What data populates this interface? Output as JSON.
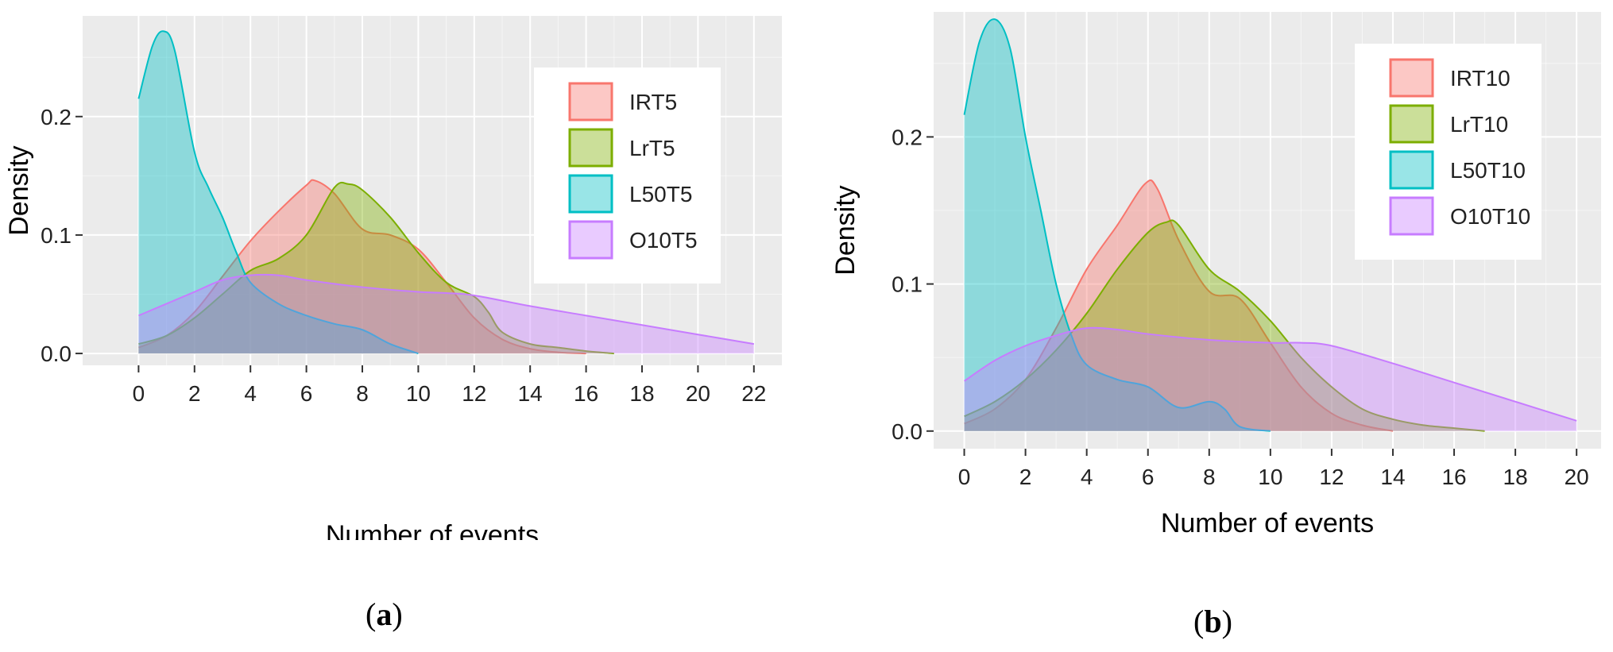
{
  "colors": {
    "IRT": "#F8766D",
    "LrT": "#7CAE00",
    "L50T": "#00BFC4",
    "O10T": "#C77CFF",
    "panel_bg": "#EBEBEB",
    "grid": "#FFFFFF"
  },
  "panel_labels": {
    "a": "a",
    "b": "b"
  },
  "chart_data": [
    {
      "type": "area",
      "panel": "a",
      "title": "",
      "xlabel": "Number of events",
      "ylabel": "Density",
      "xlim": [
        -2.0,
        23.0
      ],
      "ylim": [
        -0.01,
        0.285
      ],
      "xticks": [
        0,
        2,
        4,
        6,
        8,
        10,
        12,
        14,
        16,
        18,
        20,
        22
      ],
      "yticks": [
        0.0,
        0.1,
        0.2
      ],
      "ytick_labels": [
        "0.0",
        "0.1",
        "0.2"
      ],
      "legend_position": "top-right",
      "series": [
        {
          "name": "IRT5",
          "key": "IRT",
          "x": [
            0,
            1,
            2,
            3,
            4,
            5,
            6,
            6.3,
            7,
            8,
            9,
            10,
            11,
            12,
            13,
            14,
            15,
            16
          ],
          "y": [
            0.005,
            0.015,
            0.035,
            0.065,
            0.095,
            0.12,
            0.142,
            0.146,
            0.135,
            0.105,
            0.1,
            0.088,
            0.06,
            0.03,
            0.012,
            0.004,
            0.001,
            0
          ]
        },
        {
          "name": "LrT5",
          "key": "LrT",
          "x": [
            0,
            1,
            2,
            3,
            4,
            5,
            6,
            7,
            7.5,
            8,
            9,
            10,
            11,
            12,
            12.5,
            13,
            14,
            15,
            16,
            17
          ],
          "y": [
            0.008,
            0.015,
            0.03,
            0.05,
            0.07,
            0.08,
            0.1,
            0.14,
            0.143,
            0.138,
            0.115,
            0.085,
            0.06,
            0.048,
            0.035,
            0.018,
            0.008,
            0.005,
            0.002,
            0
          ]
        },
        {
          "name": "L50T5",
          "key": "L50T",
          "x": [
            0,
            0.5,
            0.9,
            1.3,
            2,
            2.5,
            3,
            3.5,
            4,
            5,
            6,
            7,
            8,
            9,
            10
          ],
          "y": [
            0.215,
            0.26,
            0.272,
            0.255,
            0.17,
            0.14,
            0.115,
            0.085,
            0.06,
            0.042,
            0.032,
            0.025,
            0.02,
            0.008,
            0
          ]
        },
        {
          "name": "O10T5",
          "key": "O10T",
          "x": [
            0,
            2,
            3,
            4,
            5,
            6,
            8,
            10,
            11,
            12,
            14,
            16,
            18,
            20,
            22
          ],
          "y": [
            0.032,
            0.052,
            0.062,
            0.066,
            0.066,
            0.062,
            0.056,
            0.052,
            0.051,
            0.049,
            0.04,
            0.032,
            0.024,
            0.016,
            0.008
          ]
        }
      ]
    },
    {
      "type": "area",
      "panel": "b",
      "title": "",
      "xlabel": "Number of events",
      "ylabel": "Density",
      "xlim": [
        -1.0,
        20.8
      ],
      "ylim": [
        -0.012,
        0.285
      ],
      "xticks": [
        0,
        2,
        4,
        6,
        8,
        10,
        12,
        14,
        16,
        18,
        20
      ],
      "yticks": [
        0.0,
        0.1,
        0.2
      ],
      "ytick_labels": [
        "0.0",
        "0.1",
        "0.2"
      ],
      "legend_position": "top-right",
      "series": [
        {
          "name": "IRT10",
          "key": "IRT",
          "x": [
            0,
            1,
            2,
            3,
            4,
            5,
            5.9,
            6.3,
            7,
            8,
            9,
            10,
            11,
            12,
            13,
            14
          ],
          "y": [
            0.005,
            0.015,
            0.035,
            0.07,
            0.11,
            0.14,
            0.168,
            0.165,
            0.13,
            0.095,
            0.09,
            0.06,
            0.03,
            0.012,
            0.004,
            0
          ]
        },
        {
          "name": "LrT10",
          "key": "LrT",
          "x": [
            0,
            1,
            2,
            3,
            4,
            5,
            6,
            6.6,
            7,
            8,
            9,
            10,
            11,
            12,
            13,
            14,
            15,
            16,
            17
          ],
          "y": [
            0.01,
            0.02,
            0.035,
            0.055,
            0.08,
            0.11,
            0.135,
            0.142,
            0.14,
            0.11,
            0.095,
            0.075,
            0.05,
            0.03,
            0.015,
            0.008,
            0.004,
            0.002,
            0
          ]
        },
        {
          "name": "L50T10",
          "key": "L50T",
          "x": [
            0,
            0.5,
            1,
            1.5,
            2,
            2.5,
            3,
            3.5,
            4,
            5,
            6,
            7,
            8,
            8.5,
            9,
            10
          ],
          "y": [
            0.215,
            0.265,
            0.28,
            0.26,
            0.2,
            0.15,
            0.1,
            0.065,
            0.045,
            0.035,
            0.03,
            0.016,
            0.02,
            0.015,
            0.003,
            0
          ]
        },
        {
          "name": "O10T10",
          "key": "O10T",
          "x": [
            0,
            1,
            2,
            3,
            4,
            5,
            6,
            8,
            10,
            11,
            12,
            14,
            16,
            18,
            20
          ],
          "y": [
            0.034,
            0.048,
            0.058,
            0.065,
            0.07,
            0.069,
            0.066,
            0.062,
            0.06,
            0.06,
            0.058,
            0.046,
            0.033,
            0.02,
            0.007
          ]
        }
      ]
    }
  ]
}
